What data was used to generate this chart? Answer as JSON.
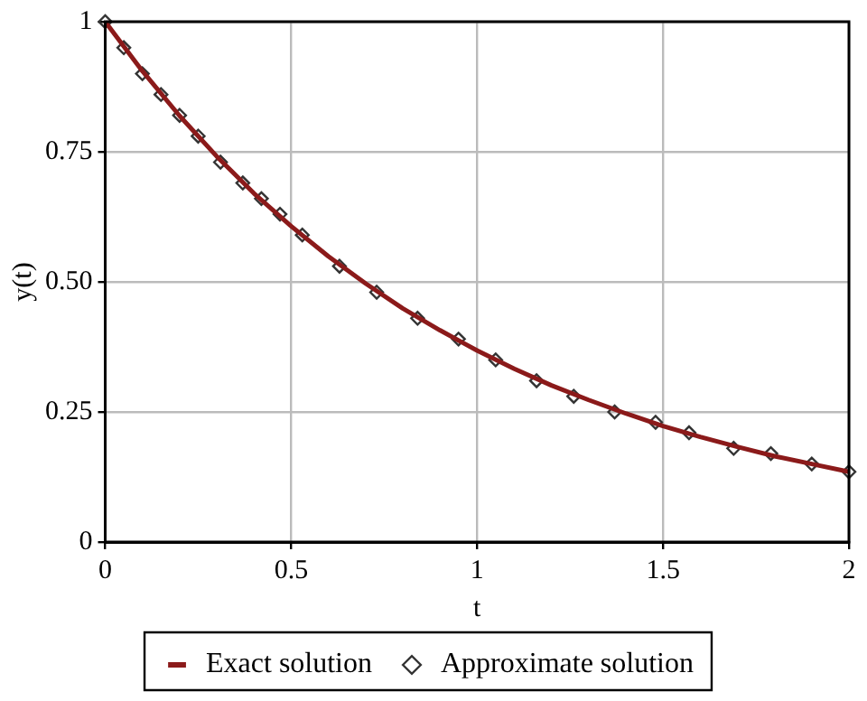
{
  "chart_data": {
    "type": "line",
    "xlabel": "t",
    "ylabel": "y(t)",
    "series": [
      {
        "name": "Exact solution",
        "color": "#8b1a1a",
        "marker": "none",
        "line_style": "solid",
        "x": [
          0,
          0.1,
          0.2,
          0.3,
          0.4,
          0.5,
          0.6,
          0.7,
          0.8,
          0.9,
          1,
          1.1,
          1.2,
          1.3,
          1.4,
          1.5,
          1.6,
          1.7,
          1.8,
          1.9,
          2
        ],
        "values": [
          1,
          0.905,
          0.819,
          0.741,
          0.67,
          0.607,
          0.549,
          0.497,
          0.449,
          0.407,
          0.368,
          0.333,
          0.301,
          0.273,
          0.247,
          0.223,
          0.202,
          0.183,
          0.165,
          0.15,
          0.135
        ]
      },
      {
        "name": "Approximate solution",
        "type": "scatter",
        "color": "#333333",
        "marker": "diamond",
        "x": [
          0,
          0.05,
          0.1,
          0.15,
          0.2,
          0.25,
          0.31,
          0.37,
          0.42,
          0.47,
          0.53,
          0.63,
          0.73,
          0.84,
          0.95,
          1.05,
          1.16,
          1.26,
          1.37,
          1.48,
          1.57,
          1.69,
          1.79,
          1.9,
          2.0
        ],
        "values": [
          1,
          0.95,
          0.9,
          0.86,
          0.82,
          0.78,
          0.73,
          0.69,
          0.66,
          0.63,
          0.59,
          0.53,
          0.48,
          0.43,
          0.39,
          0.35,
          0.31,
          0.28,
          0.25,
          0.23,
          0.21,
          0.18,
          0.17,
          0.15,
          0.135
        ]
      }
    ],
    "xlim": [
      0,
      2
    ],
    "xticks": [
      0,
      0.5,
      1,
      1.5,
      2
    ],
    "ylim": [
      0,
      1
    ],
    "yticks": [
      0,
      0.25,
      {
        "value": 0.5,
        "label": "0.50"
      },
      0.75,
      1
    ],
    "grid": true,
    "legend": "bottom"
  }
}
